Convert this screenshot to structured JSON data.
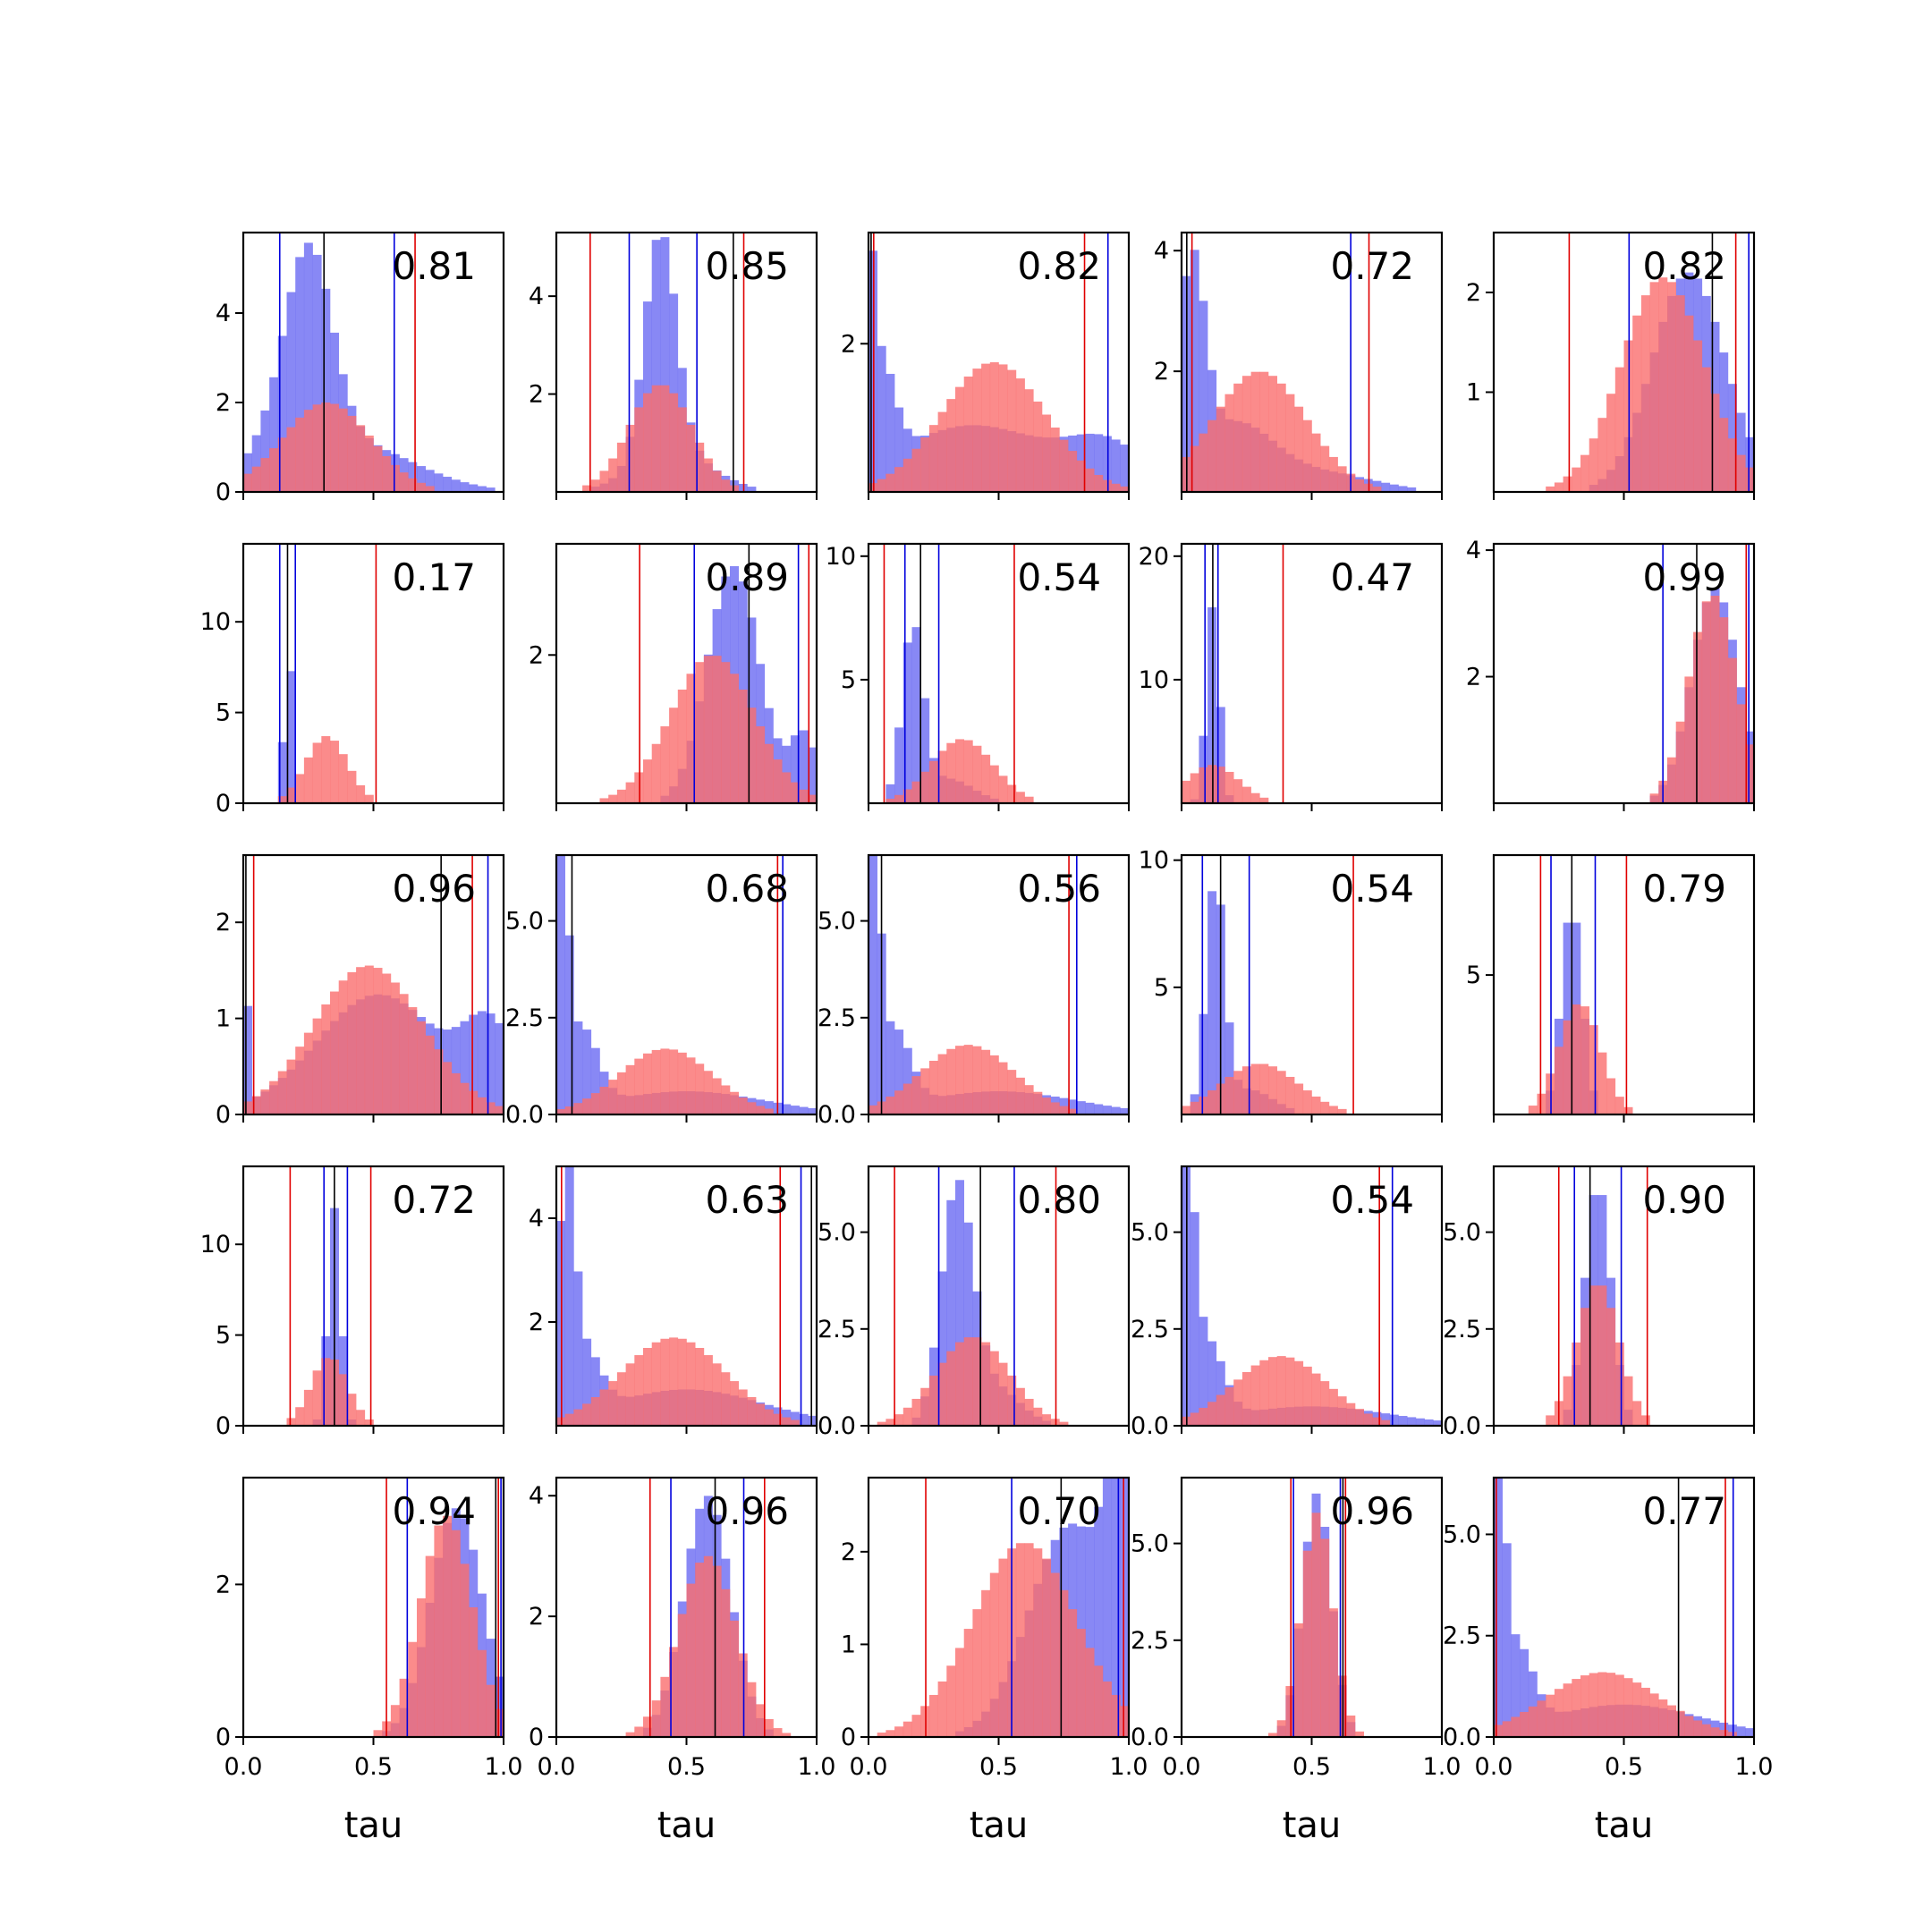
{
  "colors": {
    "blue": "#6a6af2",
    "red": "#fa6e6e",
    "blue_line": "#0000dd",
    "red_line": "#e00000",
    "black_line": "#000000"
  },
  "chart_data": {
    "type": "histogram-grid",
    "rows": 5,
    "cols": 5,
    "xlabel": "tau",
    "xlim": [
      0,
      1
    ],
    "xticks": [
      "0.0",
      "0.5",
      "1.0"
    ],
    "series": [
      {
        "color": "blue"
      },
      {
        "color": "red"
      }
    ],
    "panels": [
      {
        "label": "0.81",
        "ymax": 5.8,
        "yticks": [
          "0",
          "2",
          "4"
        ],
        "ytick_values": [
          0,
          2,
          4
        ],
        "blue": [
          [
            0.08,
            0.5,
            0.08
          ],
          [
            0.25,
            4.6,
            0.09
          ],
          [
            0.4,
            1.1,
            0.25
          ]
        ],
        "red": [
          [
            0.32,
            2.0,
            0.17
          ]
        ],
        "lines": {
          "red": [
            0.66
          ],
          "blue": [
            0.14,
            0.58
          ],
          "black": [
            0.31
          ]
        }
      },
      {
        "label": "0.85",
        "ymax": 5.3,
        "yticks": [
          "2",
          "4"
        ],
        "ytick_values": [
          2,
          4
        ],
        "blue": [
          [
            0.4,
            4.6,
            0.06
          ],
          [
            0.45,
            0.8,
            0.15
          ]
        ],
        "red": [
          [
            0.4,
            2.2,
            0.12
          ]
        ],
        "lines": {
          "red": [
            0.13,
            0.72
          ],
          "blue": [
            0.28,
            0.54
          ],
          "black": [
            0.68
          ]
        }
      },
      {
        "label": "0.82",
        "ymax": 3.5,
        "yticks": [
          "2"
        ],
        "ytick_values": [
          2
        ],
        "blue": [
          [
            0.0,
            3.4,
            0.012
          ],
          [
            0.03,
            1.6,
            0.06
          ],
          [
            0.4,
            0.9,
            0.3
          ],
          [
            0.92,
            0.55,
            0.15
          ]
        ],
        "red": [
          [
            0.48,
            1.75,
            0.2
          ]
        ],
        "lines": {
          "red": [
            0.02,
            0.83
          ],
          "blue": [
            0.92
          ],
          "black": [
            0.01
          ]
        }
      },
      {
        "label": "0.72",
        "ymax": 4.3,
        "yticks": [
          "2",
          "4"
        ],
        "ytick_values": [
          2,
          4
        ],
        "blue": [
          [
            0.04,
            3.4,
            0.05
          ],
          [
            0.2,
            1.1,
            0.15
          ],
          [
            0.55,
            0.3,
            0.2
          ]
        ],
        "red": [
          [
            0.3,
            2.0,
            0.18
          ]
        ],
        "lines": {
          "red": [
            0.04,
            0.72
          ],
          "blue": [
            0.65
          ],
          "black": [
            0.02
          ]
        }
      },
      {
        "label": "0.82",
        "ymax": 2.6,
        "yticks": [
          "1",
          "2"
        ],
        "ytick_values": [
          1,
          2
        ],
        "blue": [
          [
            0.75,
            2.2,
            0.14
          ]
        ],
        "red": [
          [
            0.65,
            2.15,
            0.16
          ]
        ],
        "lines": {
          "red": [
            0.29,
            0.93
          ],
          "blue": [
            0.52,
            0.98
          ],
          "black": [
            0.84
          ]
        }
      },
      {
        "label": "0.17",
        "ymax": 14.3,
        "yticks": [
          "0",
          "5",
          "10"
        ],
        "ytick_values": [
          0,
          5,
          10
        ],
        "blue": [
          [
            0.17,
            13.5,
            0.012
          ]
        ],
        "red": [
          [
            0.32,
            3.7,
            0.08
          ]
        ],
        "lines": {
          "red": [
            0.51
          ],
          "blue": [
            0.14,
            0.2
          ],
          "black": [
            0.17
          ]
        }
      },
      {
        "label": "0.89",
        "ymax": 3.5,
        "yticks": [
          "2"
        ],
        "ytick_values": [
          2
        ],
        "blue": [
          [
            0.68,
            3.2,
            0.1
          ],
          [
            0.95,
            0.9,
            0.05
          ]
        ],
        "red": [
          [
            0.6,
            2.0,
            0.16
          ]
        ],
        "lines": {
          "red": [
            0.32,
            0.97
          ],
          "blue": [
            0.53,
            0.93
          ],
          "black": [
            0.74
          ]
        }
      },
      {
        "label": "0.54",
        "ymax": 10.5,
        "yticks": [
          "5",
          "10"
        ],
        "ytick_values": [
          5,
          10
        ],
        "blue": [
          [
            0.17,
            7.0,
            0.04
          ],
          [
            0.3,
            1.0,
            0.1
          ]
        ],
        "red": [
          [
            0.36,
            2.6,
            0.12
          ]
        ],
        "lines": {
          "red": [
            0.06,
            0.56
          ],
          "blue": [
            0.14,
            0.27
          ],
          "black": [
            0.2
          ]
        }
      },
      {
        "label": "0.47",
        "ymax": 21.0,
        "yticks": [
          "10",
          "20"
        ],
        "ytick_values": [
          10,
          20
        ],
        "blue": [
          [
            0.12,
            16,
            0.025
          ]
        ],
        "red": [
          [
            0.12,
            3.1,
            0.1
          ]
        ],
        "lines": {
          "red": [
            0.39
          ],
          "blue": [
            0.09,
            0.14
          ],
          "black": [
            0.12
          ]
        }
      },
      {
        "label": "0.99",
        "ymax": 4.1,
        "yticks": [
          "2",
          "4"
        ],
        "ytick_values": [
          2,
          4
        ],
        "blue": [
          [
            0.85,
            3.4,
            0.09
          ]
        ],
        "red": [
          [
            0.84,
            3.3,
            0.09
          ]
        ],
        "lines": {
          "red": [
            0.97
          ],
          "blue": [
            0.65,
            0.98
          ],
          "black": [
            0.78
          ]
        }
      },
      {
        "label": "0.96",
        "ymax": 2.7,
        "yticks": [
          "0",
          "1",
          "2"
        ],
        "ytick_values": [
          0,
          1,
          2
        ],
        "blue": [
          [
            0.0,
            2.6,
            0.012
          ],
          [
            0.52,
            1.25,
            0.24
          ],
          [
            0.95,
            0.8,
            0.1
          ]
        ],
        "red": [
          [
            0.48,
            1.55,
            0.21
          ]
        ],
        "lines": {
          "red": [
            0.04,
            0.88
          ],
          "blue": [
            0.94
          ],
          "black": [
            0.76,
            0.01
          ]
        }
      },
      {
        "label": "0.68",
        "ymax": 6.7,
        "yticks": [
          "0.0",
          "2.5",
          "5.0"
        ],
        "ytick_values": [
          0,
          2.5,
          5
        ],
        "blue": [
          [
            0.02,
            6.2,
            0.025
          ],
          [
            0.1,
            2.0,
            0.06
          ],
          [
            0.5,
            0.6,
            0.3
          ]
        ],
        "red": [
          [
            0.42,
            1.7,
            0.18
          ]
        ],
        "lines": {
          "red": [
            0.85
          ],
          "blue": [
            0.87
          ],
          "black": [
            0.06
          ]
        }
      },
      {
        "label": "0.56",
        "ymax": 6.7,
        "yticks": [
          "0.0",
          "2.5",
          "5.0"
        ],
        "ytick_values": [
          0,
          2.5,
          5
        ],
        "blue": [
          [
            0.02,
            6.3,
            0.025
          ],
          [
            0.1,
            2.0,
            0.06
          ],
          [
            0.5,
            0.6,
            0.3
          ]
        ],
        "red": [
          [
            0.38,
            1.8,
            0.18
          ]
        ],
        "lines": {
          "red": [
            0.77
          ],
          "blue": [
            0.8
          ],
          "black": [
            0.05
          ]
        }
      },
      {
        "label": "0.54",
        "ymax": 10.2,
        "yticks": [
          "5",
          "10"
        ],
        "ytick_values": [
          5,
          10
        ],
        "blue": [
          [
            0.13,
            9.0,
            0.035
          ],
          [
            0.25,
            1.0,
            0.1
          ]
        ],
        "red": [
          [
            0.3,
            2.0,
            0.15
          ]
        ],
        "lines": {
          "red": [
            0.66
          ],
          "blue": [
            0.08,
            0.26
          ],
          "black": [
            0.15
          ]
        }
      },
      {
        "label": "0.79",
        "ymax": 9.3,
        "yticks": [
          "5"
        ],
        "ytick_values": [
          5
        ],
        "blue": [
          [
            0.3,
            7.5,
            0.04
          ]
        ],
        "red": [
          [
            0.33,
            4.0,
            0.08
          ]
        ],
        "lines": {
          "red": [
            0.18,
            0.51
          ],
          "blue": [
            0.22,
            0.39
          ],
          "black": [
            0.3
          ]
        }
      },
      {
        "label": "0.72",
        "ymax": 14.3,
        "yticks": [
          "0",
          "5",
          "10"
        ],
        "ytick_values": [
          0,
          5,
          10
        ],
        "blue": [
          [
            0.35,
            12.0,
            0.025
          ]
        ],
        "red": [
          [
            0.33,
            3.8,
            0.07
          ]
        ],
        "lines": {
          "red": [
            0.18,
            0.49
          ],
          "blue": [
            0.31,
            0.4
          ],
          "black": [
            0.35
          ]
        }
      },
      {
        "label": "0.63",
        "ymax": 5.0,
        "yticks": [
          "2",
          "4"
        ],
        "ytick_values": [
          2,
          4
        ],
        "blue": [
          [
            0.04,
            4.6,
            0.03
          ],
          [
            0.11,
            1.2,
            0.06
          ],
          [
            0.5,
            0.7,
            0.3
          ]
        ],
        "red": [
          [
            0.45,
            1.7,
            0.2
          ]
        ],
        "lines": {
          "red": [
            0.02,
            0.86
          ],
          "blue": [
            0.94
          ],
          "black": [
            0.98
          ]
        }
      },
      {
        "label": "0.80",
        "ymax": 6.7,
        "yticks": [
          "0.0",
          "2.5",
          "5.0"
        ],
        "ytick_values": [
          0,
          2.5,
          5
        ],
        "blue": [
          [
            0.34,
            6.0,
            0.06
          ],
          [
            0.48,
            1.0,
            0.1
          ]
        ],
        "red": [
          [
            0.4,
            2.3,
            0.14
          ]
        ],
        "lines": {
          "red": [
            0.1,
            0.72
          ],
          "blue": [
            0.27,
            0.56
          ],
          "black": [
            0.43
          ]
        }
      },
      {
        "label": "0.54",
        "ymax": 6.7,
        "yticks": [
          "0.0",
          "2.5",
          "5.0"
        ],
        "ytick_values": [
          0,
          2.5,
          5
        ],
        "blue": [
          [
            0.02,
            6.5,
            0.03
          ],
          [
            0.1,
            2.0,
            0.06
          ],
          [
            0.5,
            0.5,
            0.3
          ]
        ],
        "red": [
          [
            0.38,
            1.8,
            0.18
          ]
        ],
        "lines": {
          "red": [
            0.76
          ],
          "blue": [
            0.81
          ],
          "black": [
            0.02
          ]
        }
      },
      {
        "label": "0.90",
        "ymax": 6.7,
        "yticks": [
          "0.0",
          "2.5",
          "5.0"
        ],
        "ytick_values": [
          0,
          2.5,
          5
        ],
        "blue": [
          [
            0.4,
            6.3,
            0.05
          ]
        ],
        "red": [
          [
            0.4,
            3.7,
            0.08
          ]
        ],
        "lines": {
          "red": [
            0.25,
            0.59
          ],
          "blue": [
            0.31,
            0.49
          ],
          "black": [
            0.37
          ]
        }
      },
      {
        "label": "0.94",
        "ymax": 3.4,
        "yticks": [
          "0",
          "2"
        ],
        "ytick_values": [
          0,
          2
        ],
        "blue": [
          [
            0.82,
            3.0,
            0.1
          ]
        ],
        "red": [
          [
            0.78,
            2.9,
            0.1
          ]
        ],
        "lines": {
          "red": [
            0.55,
            0.98
          ],
          "blue": [
            0.63,
            0.99
          ],
          "black": [
            0.97
          ]
        }
      },
      {
        "label": "0.96",
        "ymax": 4.3,
        "yticks": [
          "0",
          "2",
          "4"
        ],
        "ytick_values": [
          0,
          2,
          4
        ],
        "blue": [
          [
            0.58,
            4.0,
            0.09
          ]
        ],
        "red": [
          [
            0.58,
            3.0,
            0.11
          ]
        ],
        "lines": {
          "red": [
            0.36,
            0.8
          ],
          "blue": [
            0.44,
            0.72
          ],
          "black": [
            0.61
          ]
        }
      },
      {
        "label": "0.70",
        "ymax": 2.8,
        "yticks": [
          "0",
          "1",
          "2"
        ],
        "ytick_values": [
          0,
          1,
          2
        ],
        "blue": [
          [
            0.78,
            2.3,
            0.16
          ],
          [
            0.96,
            2.0,
            0.05
          ]
        ],
        "red": [
          [
            0.6,
            2.1,
            0.2
          ]
        ],
        "lines": {
          "red": [
            0.22,
            0.98
          ],
          "blue": [
            0.55,
            0.96
          ],
          "black": [
            0.74
          ]
        }
      },
      {
        "label": "0.96",
        "ymax": 6.7,
        "yticks": [
          "0.0",
          "2.5",
          "5.0"
        ],
        "ytick_values": [
          0,
          2.5,
          5
        ],
        "blue": [
          [
            0.52,
            6.3,
            0.055
          ]
        ],
        "red": [
          [
            0.52,
            5.8,
            0.06
          ]
        ],
        "lines": {
          "red": [
            0.42,
            0.63
          ],
          "blue": [
            0.43,
            0.61
          ],
          "black": [
            0.62
          ]
        }
      },
      {
        "label": "0.77",
        "ymax": 6.4,
        "yticks": [
          "0.0",
          "2.5",
          "5.0"
        ],
        "ytick_values": [
          0,
          2.5,
          5
        ],
        "blue": [
          [
            0.02,
            6.0,
            0.025
          ],
          [
            0.09,
            2.0,
            0.06
          ],
          [
            0.5,
            0.8,
            0.3
          ]
        ],
        "red": [
          [
            0.42,
            1.6,
            0.22
          ]
        ],
        "lines": {
          "red": [
            0.89,
            0.01
          ],
          "blue": [
            0.92
          ],
          "black": [
            0.71
          ]
        }
      }
    ]
  }
}
